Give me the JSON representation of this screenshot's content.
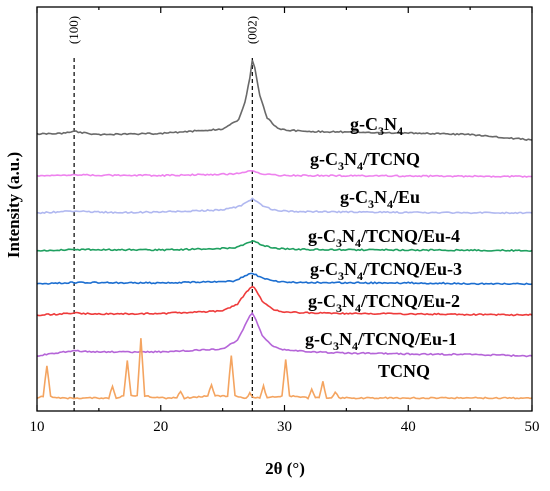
{
  "chart_data": {
    "type": "line",
    "title": "",
    "xlabel": "2θ (°)",
    "ylabel": "Intensity (a.u.)",
    "xlim": [
      10,
      50
    ],
    "x_ticks": [
      "10",
      "20",
      "30",
      "40",
      "50"
    ],
    "y_ticks": "none",
    "grid": false,
    "legend": "inline labels to the right of each curve",
    "reference_lines": [
      {
        "x": 13.0,
        "label": "(100)",
        "style": "dashed"
      },
      {
        "x": 27.4,
        "label": "(002)",
        "style": "dashed"
      }
    ],
    "series": [
      {
        "name": "g-C3N4",
        "label_main": "g-C",
        "label_parts": [
          [
            "3",
            "N"
          ],
          [
            "4",
            ""
          ]
        ],
        "color": "#696969",
        "x": [
          10,
          12,
          12.6,
          13.0,
          13.5,
          15,
          20,
          25,
          26.3,
          26.8,
          27.2,
          27.4,
          27.6,
          28.0,
          28.6,
          29.3,
          30,
          32,
          35,
          40,
          45,
          50
        ],
        "y": [
          0.06,
          0.065,
          0.08,
          0.09,
          0.075,
          0.055,
          0.065,
          0.11,
          0.2,
          0.38,
          0.62,
          0.8,
          0.72,
          0.45,
          0.22,
          0.13,
          0.1,
          0.085,
          0.08,
          0.07,
          0.055,
          0.0
        ]
      },
      {
        "name": "g-C3N4/TCNQ",
        "label_main": "g-C",
        "label_parts": [
          [
            "3",
            "N"
          ],
          [
            "4",
            "/TCNQ"
          ]
        ],
        "color": "#ee82ee",
        "x": [
          10,
          13,
          20,
          26,
          27.2,
          27.4,
          27.7,
          28.5,
          30,
          40,
          50
        ],
        "y": [
          0.02,
          0.03,
          0.025,
          0.04,
          0.07,
          0.075,
          0.06,
          0.035,
          0.025,
          0.02,
          0.015
        ]
      },
      {
        "name": "g-C3N4/Eu",
        "label_main": "g-C",
        "label_parts": [
          [
            "3",
            "N"
          ],
          [
            "4",
            "/Eu"
          ]
        ],
        "color": "#b0b8f0",
        "x": [
          10,
          13,
          16,
          20,
          25,
          26.5,
          27.0,
          27.4,
          27.8,
          28.4,
          29.2,
          30.5,
          35,
          40,
          50
        ],
        "y": [
          0.03,
          0.05,
          0.035,
          0.04,
          0.06,
          0.1,
          0.15,
          0.17,
          0.14,
          0.09,
          0.06,
          0.045,
          0.04,
          0.035,
          0.03
        ]
      },
      {
        "name": "g-C3N4/TCNQ/Eu-4",
        "label_main": "g-C",
        "label_parts": [
          [
            "3",
            "N"
          ],
          [
            "4",
            "/TCNQ/Eu-4"
          ]
        ],
        "color": "#1fa060",
        "x": [
          10,
          13,
          20,
          26,
          26.8,
          27.4,
          28.0,
          29.0,
          31,
          40,
          50
        ],
        "y": [
          0.02,
          0.035,
          0.03,
          0.05,
          0.09,
          0.12,
          0.09,
          0.05,
          0.035,
          0.03,
          0.025
        ]
      },
      {
        "name": "g-C3N4/TCNQ/Eu-3",
        "label_main": "g-C",
        "label_parts": [
          [
            "3",
            "N"
          ],
          [
            "4",
            "/TCNQ/Eu-3"
          ]
        ],
        "color": "#1c6ed0",
        "x": [
          10,
          13,
          20,
          26,
          26.8,
          27.4,
          28.0,
          29.0,
          31,
          40,
          50
        ],
        "y": [
          0.02,
          0.035,
          0.03,
          0.05,
          0.1,
          0.13,
          0.09,
          0.05,
          0.035,
          0.03,
          0.02
        ]
      },
      {
        "name": "g-C3N4/TCNQ/Eu-2",
        "label_main": "g-C",
        "label_parts": [
          [
            "3",
            "N"
          ],
          [
            "4",
            "/TCNQ/Eu-2"
          ]
        ],
        "color": "#ee3b3b",
        "x": [
          10,
          12,
          13,
          15,
          20,
          25,
          26.2,
          26.8,
          27.2,
          27.4,
          27.7,
          28.2,
          29.0,
          30,
          32,
          35,
          40,
          45,
          50
        ],
        "y": [
          0.03,
          0.04,
          0.05,
          0.04,
          0.045,
          0.07,
          0.14,
          0.24,
          0.3,
          0.32,
          0.28,
          0.17,
          0.09,
          0.06,
          0.05,
          0.045,
          0.04,
          0.035,
          0.03
        ]
      },
      {
        "name": "g-C3N4/TCNQ/Eu-1",
        "label_main": "g-C",
        "label_parts": [
          [
            "3",
            "N"
          ],
          [
            "4",
            "/TCNQ/Eu-1"
          ]
        ],
        "color": "#b565d8",
        "x": [
          10,
          12,
          13,
          15,
          20,
          25,
          26.2,
          26.8,
          27.2,
          27.4,
          27.7,
          28.2,
          29.0,
          30,
          32,
          35,
          40,
          45,
          50
        ],
        "y": [
          0.0,
          0.04,
          0.05,
          0.04,
          0.04,
          0.07,
          0.16,
          0.3,
          0.4,
          0.43,
          0.36,
          0.2,
          0.1,
          0.06,
          0.04,
          0.03,
          0.02,
          0.015,
          0.0
        ]
      },
      {
        "name": "TCNQ",
        "label_main": "TCNQ",
        "label_parts": [],
        "color": "#f4a460",
        "x": [
          10,
          10.5,
          10.8,
          11.1,
          11.6,
          15.8,
          16.1,
          16.4,
          17.0,
          17.3,
          17.6,
          18.1,
          18.4,
          18.7,
          20,
          21.3,
          21.6,
          21.9,
          23.8,
          24.1,
          24.4,
          25.4,
          25.7,
          26.0,
          26.9,
          27.2,
          27.5,
          28.0,
          28.3,
          28.6,
          29.8,
          30.1,
          30.4,
          31.9,
          32.2,
          32.5,
          32.8,
          33.1,
          33.4,
          33.8,
          34.1,
          34.4,
          35,
          40,
          45,
          50
        ],
        "y": [
          0.0,
          0.02,
          0.32,
          0.02,
          0.0,
          0.0,
          0.12,
          0.0,
          0.02,
          0.38,
          0.02,
          0.02,
          0.6,
          0.02,
          0.0,
          0.0,
          0.07,
          0.0,
          0.02,
          0.13,
          0.02,
          0.02,
          0.43,
          0.02,
          0.0,
          0.05,
          0.0,
          0.0,
          0.12,
          0.0,
          0.02,
          0.39,
          0.02,
          0.0,
          0.09,
          0.0,
          0.0,
          0.16,
          0.0,
          0.0,
          0.06,
          0.0,
          0.0,
          0.0,
          0.0,
          0.0
        ]
      }
    ]
  }
}
